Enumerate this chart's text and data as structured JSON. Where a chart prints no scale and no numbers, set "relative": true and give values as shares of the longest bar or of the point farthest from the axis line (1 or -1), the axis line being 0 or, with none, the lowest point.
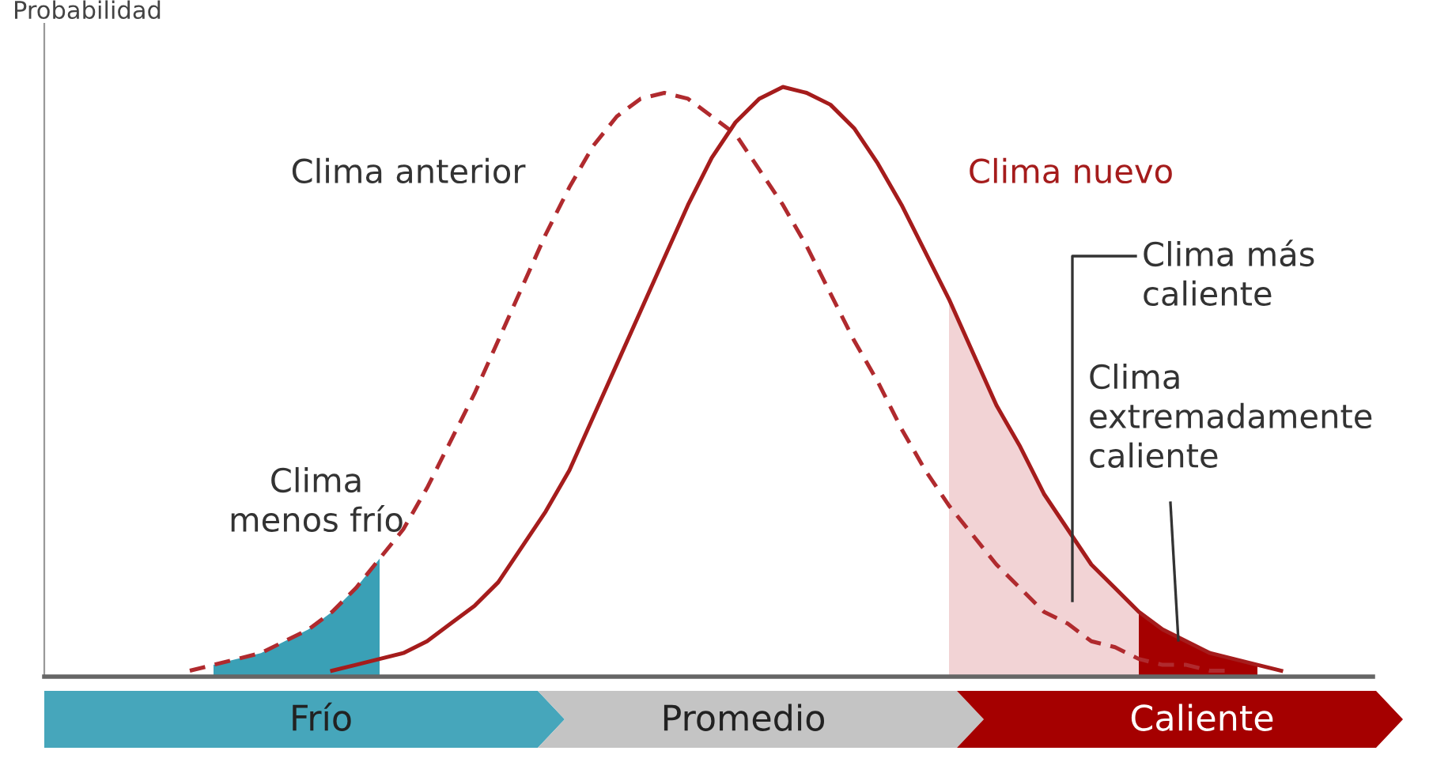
{
  "chart_data": {
    "type": "line",
    "relative": true,
    "ylabel": "Probabilidad",
    "categories": [
      null,
      null,
      null,
      null,
      null,
      null,
      null,
      null,
      null,
      null,
      null,
      null,
      null,
      null,
      null,
      null,
      null,
      null,
      null,
      null,
      null,
      null,
      null,
      null,
      null,
      null,
      null,
      null,
      null,
      null,
      null,
      null,
      null,
      null,
      null,
      null,
      null,
      null,
      null,
      null,
      null,
      null,
      null,
      null,
      null,
      null,
      null
    ],
    "annotations": [
      "Frío",
      "Promedio",
      "Caliente"
    ],
    "series": [
      {
        "name": "Clima\nmenos frío",
        "type": "area",
        "color": "#3aa0b6",
        "values": [
          null,
          0.02,
          0.03,
          0.04,
          0.06,
          0.08,
          0.11,
          0.15,
          0.2,
          null,
          null,
          null,
          null,
          null,
          null,
          null,
          null,
          null,
          null,
          null,
          null,
          null,
          null,
          null,
          null,
          null,
          null,
          null,
          null,
          null,
          null,
          null,
          null,
          null,
          null,
          null,
          null,
          null,
          null,
          null,
          null,
          null,
          null,
          null,
          null,
          null,
          null
        ]
      },
      {
        "name": "Clima más\ncaliente",
        "type": "area",
        "color": "#f2d3d5",
        "values": [
          null,
          null,
          null,
          null,
          null,
          null,
          null,
          null,
          null,
          null,
          null,
          null,
          null,
          null,
          null,
          null,
          null,
          null,
          null,
          null,
          null,
          null,
          null,
          null,
          null,
          null,
          null,
          null,
          null,
          null,
          null,
          null,
          0.64,
          0.55,
          0.46,
          0.39,
          0.31,
          0.25,
          0.19,
          0.15,
          0.11,
          null,
          null,
          null,
          null,
          null,
          null
        ]
      },
      {
        "name": "Clima\nextremadamente\ncaliente",
        "type": "area",
        "color": "#a50000",
        "values": [
          null,
          null,
          null,
          null,
          null,
          null,
          null,
          null,
          null,
          null,
          null,
          null,
          null,
          null,
          null,
          null,
          null,
          null,
          null,
          null,
          null,
          null,
          null,
          null,
          null,
          null,
          null,
          null,
          null,
          null,
          null,
          null,
          null,
          null,
          null,
          null,
          null,
          null,
          null,
          null,
          0.11,
          0.08,
          0.06,
          0.04,
          0.03,
          0.02,
          null
        ]
      },
      {
        "name": "Clima anterior",
        "line_style": "dashed",
        "color": "#b02a2e",
        "values": [
          0.01,
          0.02,
          0.03,
          0.04,
          0.06,
          0.08,
          0.11,
          0.15,
          0.2,
          0.25,
          0.32,
          0.4,
          0.48,
          0.57,
          0.66,
          0.75,
          0.83,
          0.9,
          0.95,
          0.98,
          0.99,
          0.98,
          0.95,
          0.92,
          0.86,
          0.8,
          0.73,
          0.65,
          0.57,
          0.5,
          0.42,
          0.35,
          0.29,
          0.24,
          0.19,
          0.15,
          0.11,
          0.09,
          0.06,
          0.05,
          0.03,
          0.02,
          0.02,
          0.01,
          0.01,
          null,
          null
        ]
      },
      {
        "name": "Clima nuevo",
        "line_style": "solid",
        "color": "#a51c1c",
        "values": [
          null,
          null,
          null,
          null,
          null,
          null,
          0.01,
          0.02,
          0.03,
          0.04,
          0.06,
          0.09,
          0.12,
          0.16,
          0.22,
          0.28,
          0.35,
          0.44,
          0.53,
          0.62,
          0.71,
          0.8,
          0.88,
          0.94,
          0.98,
          1.0,
          0.99,
          0.97,
          0.93,
          0.87,
          0.8,
          0.72,
          0.64,
          0.55,
          0.46,
          0.39,
          0.31,
          0.25,
          0.19,
          0.15,
          0.11,
          0.08,
          0.06,
          0.04,
          0.03,
          0.02,
          0.01
        ]
      }
    ]
  }
}
